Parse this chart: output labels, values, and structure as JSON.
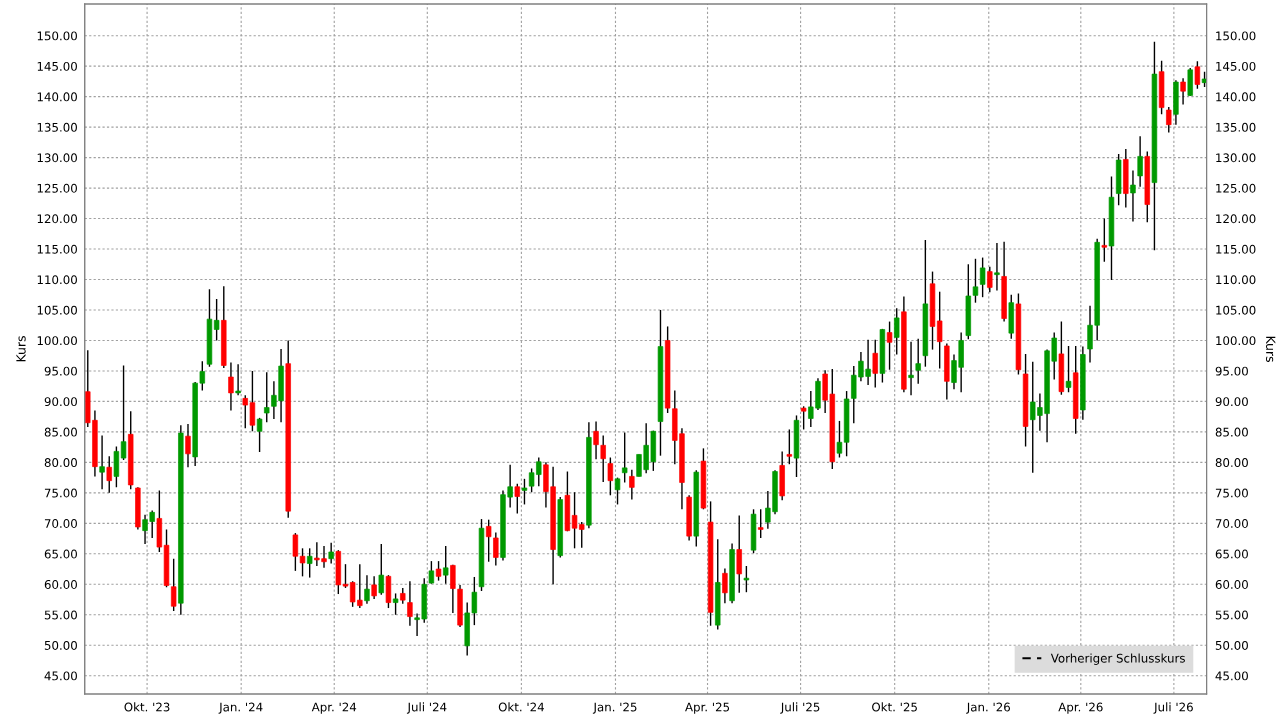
{
  "chart_data": {
    "type": "candlestick",
    "x": [
      "2023-08-04",
      "2023-08-11",
      "2023-08-18",
      "2023-08-25",
      "2023-09-01",
      "2023-09-08",
      "2023-09-15",
      "2023-09-22",
      "2023-09-29",
      "2023-10-06",
      "2023-10-13",
      "2023-10-20",
      "2023-10-27",
      "2023-11-03",
      "2023-11-10",
      "2023-11-17",
      "2023-11-24",
      "2023-12-01",
      "2023-12-08",
      "2023-12-15",
      "2023-12-22",
      "2023-12-29",
      "2024-01-05",
      "2024-01-12",
      "2024-01-19",
      "2024-01-26",
      "2024-02-02",
      "2024-02-09",
      "2024-02-16",
      "2024-02-23",
      "2024-03-01",
      "2024-03-08",
      "2024-03-15",
      "2024-03-22",
      "2024-03-29",
      "2024-04-05",
      "2024-04-12",
      "2024-04-19",
      "2024-04-26",
      "2024-05-03",
      "2024-05-10",
      "2024-05-17",
      "2024-05-24",
      "2024-05-31",
      "2024-06-07",
      "2024-06-14",
      "2024-06-21",
      "2024-06-28",
      "2024-07-05",
      "2024-07-12",
      "2024-07-19",
      "2024-07-26",
      "2024-08-02",
      "2024-08-09",
      "2024-08-16",
      "2024-08-23",
      "2024-08-30",
      "2024-09-06",
      "2024-09-13",
      "2024-09-20",
      "2024-09-27",
      "2024-10-04",
      "2024-10-11",
      "2024-10-18",
      "2024-10-25",
      "2024-11-01",
      "2024-11-08",
      "2024-11-15",
      "2024-11-22",
      "2024-11-29",
      "2024-12-06",
      "2024-12-13",
      "2024-12-20",
      "2024-12-27",
      "2025-01-03",
      "2025-01-10",
      "2025-01-17",
      "2025-01-24",
      "2025-01-31",
      "2025-02-07",
      "2025-02-14",
      "2025-02-21",
      "2025-02-28",
      "2025-03-07",
      "2025-03-14",
      "2025-03-21",
      "2025-03-28",
      "2025-04-04",
      "2025-04-11",
      "2025-04-18",
      "2025-04-25",
      "2025-05-02",
      "2025-05-09",
      "2025-05-16",
      "2025-05-23",
      "2025-05-30",
      "2025-06-06",
      "2025-06-13",
      "2025-06-20",
      "2025-06-27",
      "2025-07-04",
      "2025-07-11",
      "2025-07-18",
      "2025-07-25",
      "2025-08-01",
      "2025-08-08",
      "2025-08-15",
      "2025-08-22",
      "2025-08-29",
      "2025-09-05",
      "2025-09-12",
      "2025-09-19",
      "2025-09-26",
      "2025-10-03",
      "2025-10-10",
      "2025-10-17",
      "2025-10-24",
      "2025-10-31",
      "2025-11-07",
      "2025-11-14",
      "2025-11-21",
      "2025-11-28",
      "2025-12-05",
      "2025-12-12",
      "2025-12-19",
      "2025-12-26",
      "2026-01-02",
      "2026-01-09",
      "2026-01-16",
      "2026-01-23",
      "2026-01-30",
      "2026-02-06",
      "2026-02-13",
      "2026-02-20",
      "2026-02-27",
      "2026-03-06",
      "2026-03-13",
      "2026-03-20",
      "2026-03-27",
      "2026-04-03",
      "2026-04-10",
      "2026-04-17",
      "2026-04-24",
      "2026-05-01",
      "2026-05-08",
      "2026-05-15",
      "2026-05-22",
      "2026-05-29",
      "2026-06-05",
      "2026-06-12",
      "2026-06-19",
      "2026-06-26",
      "2026-07-03",
      "2026-07-10",
      "2026-07-17",
      "2026-07-24",
      "2026-07-31"
    ],
    "ohlc": [
      [
        91.6,
        98.4,
        85.8,
        86.5
      ],
      [
        86.9,
        88.5,
        77.7,
        79.3
      ],
      [
        78.4,
        84.4,
        75.6,
        79.3
      ],
      [
        79.2,
        81.0,
        75.0,
        77.0
      ],
      [
        77.7,
        82.6,
        75.9,
        81.8
      ],
      [
        80.7,
        95.9,
        80.4,
        83.4
      ],
      [
        84.6,
        88.4,
        75.6,
        76.3
      ],
      [
        75.8,
        75.9,
        69.0,
        69.4
      ],
      [
        68.8,
        71.4,
        66.6,
        70.6
      ],
      [
        70.3,
        72.1,
        67.6,
        71.8
      ],
      [
        70.8,
        75.4,
        65.3,
        66.1
      ],
      [
        66.4,
        69.0,
        59.5,
        59.8
      ],
      [
        59.6,
        64.2,
        55.6,
        56.4
      ],
      [
        56.9,
        86.1,
        55.0,
        84.8
      ],
      [
        84.3,
        86.3,
        79.2,
        81.4
      ],
      [
        80.9,
        93.2,
        79.4,
        93.0
      ],
      [
        93.0,
        96.6,
        91.8,
        94.9
      ],
      [
        96.1,
        108.4,
        95.7,
        103.5
      ],
      [
        101.8,
        106.8,
        100.0,
        103.3
      ],
      [
        103.3,
        108.9,
        95.5,
        95.9
      ],
      [
        94.0,
        96.4,
        88.5,
        91.4
      ],
      [
        91.4,
        96.1,
        91.0,
        91.7
      ],
      [
        90.5,
        91.0,
        85.6,
        89.4
      ],
      [
        89.8,
        95.0,
        85.1,
        86.1
      ],
      [
        85.1,
        87.3,
        81.7,
        87.1
      ],
      [
        88.1,
        94.8,
        86.6,
        89.0
      ],
      [
        89.2,
        93.3,
        87.1,
        91.0
      ],
      [
        90.1,
        98.6,
        86.6,
        95.8
      ],
      [
        96.2,
        100.0,
        70.9,
        72.0
      ],
      [
        68.1,
        68.4,
        62.2,
        64.6
      ],
      [
        64.6,
        65.9,
        61.3,
        63.5
      ],
      [
        63.4,
        65.9,
        61.1,
        64.6
      ],
      [
        64.3,
        66.9,
        63.0,
        64.0
      ],
      [
        64.2,
        66.3,
        62.7,
        63.7
      ],
      [
        64.2,
        66.8,
        63.4,
        65.3
      ],
      [
        65.4,
        65.6,
        58.4,
        59.9
      ],
      [
        60.0,
        63.3,
        59.4,
        59.7
      ],
      [
        60.3,
        60.5,
        56.3,
        57.1
      ],
      [
        57.4,
        63.3,
        56.1,
        56.5
      ],
      [
        57.3,
        61.5,
        56.8,
        59.2
      ],
      [
        59.9,
        61.3,
        57.6,
        58.1
      ],
      [
        58.6,
        66.6,
        58.3,
        61.5
      ],
      [
        61.3,
        61.5,
        56.1,
        57.0
      ],
      [
        57.0,
        58.5,
        55.0,
        57.6
      ],
      [
        58.5,
        59.4,
        56.8,
        57.4
      ],
      [
        57.0,
        60.5,
        53.2,
        54.7
      ],
      [
        54.2,
        55.2,
        51.5,
        54.5
      ],
      [
        54.3,
        61.0,
        53.7,
        60.0
      ],
      [
        60.2,
        63.8,
        60.1,
        62.2
      ],
      [
        62.5,
        63.8,
        60.6,
        61.3
      ],
      [
        61.5,
        66.3,
        60.1,
        62.7
      ],
      [
        63.1,
        63.2,
        55.3,
        59.3
      ],
      [
        59.2,
        59.9,
        53.0,
        53.3
      ],
      [
        49.9,
        57.0,
        48.3,
        55.3
      ],
      [
        55.3,
        61.2,
        53.3,
        58.7
      ],
      [
        59.6,
        70.7,
        58.9,
        69.2
      ],
      [
        69.5,
        70.6,
        63.7,
        67.8
      ],
      [
        67.6,
        68.5,
        63.1,
        64.4
      ],
      [
        64.4,
        75.4,
        63.9,
        74.7
      ],
      [
        74.3,
        79.6,
        72.6,
        76.0
      ],
      [
        76.0,
        76.5,
        71.6,
        74.4
      ],
      [
        75.4,
        77.3,
        73.1,
        75.8
      ],
      [
        76.1,
        79.0,
        75.1,
        78.3
      ],
      [
        78.0,
        80.8,
        76.1,
        80.1
      ],
      [
        79.6,
        80.0,
        72.6,
        75.2
      ],
      [
        76.0,
        79.3,
        60.0,
        65.7
      ],
      [
        64.7,
        74.3,
        64.4,
        73.9
      ],
      [
        74.6,
        78.5,
        68.7,
        68.8
      ],
      [
        71.3,
        75.1,
        65.9,
        69.2
      ],
      [
        69.8,
        70.2,
        66.0,
        69.0
      ],
      [
        69.7,
        86.6,
        69.2,
        84.1
      ],
      [
        85.1,
        86.7,
        80.5,
        82.9
      ],
      [
        82.8,
        84.4,
        76.8,
        80.6
      ],
      [
        79.8,
        80.8,
        74.6,
        77.0
      ],
      [
        75.5,
        77.5,
        73.1,
        77.3
      ],
      [
        78.3,
        84.9,
        76.7,
        79.1
      ],
      [
        77.7,
        78.8,
        73.9,
        75.9
      ],
      [
        77.7,
        81.3,
        77.7,
        81.3
      ],
      [
        78.8,
        86.4,
        78.2,
        82.8
      ],
      [
        80.1,
        85.2,
        78.6,
        85.1
      ],
      [
        86.7,
        105.0,
        81.1,
        99.0
      ],
      [
        100.0,
        102.3,
        88.1,
        88.9
      ],
      [
        88.8,
        91.8,
        79.7,
        83.6
      ],
      [
        84.7,
        85.6,
        72.3,
        76.7
      ],
      [
        74.3,
        74.6,
        67.2,
        67.9
      ],
      [
        67.9,
        78.7,
        66.2,
        78.4
      ],
      [
        80.2,
        82.3,
        72.3,
        72.5
      ],
      [
        70.2,
        73.6,
        53.2,
        55.4
      ],
      [
        53.3,
        67.4,
        52.6,
        60.3
      ],
      [
        61.8,
        62.6,
        56.9,
        58.6
      ],
      [
        57.3,
        66.7,
        56.9,
        65.7
      ],
      [
        65.7,
        71.3,
        58.6,
        61.7
      ],
      [
        60.7,
        63.0,
        58.7,
        61.0
      ],
      [
        65.6,
        72.3,
        65.1,
        71.5
      ],
      [
        69.3,
        72.3,
        67.6,
        69.0
      ],
      [
        70.2,
        75.3,
        69.1,
        72.5
      ],
      [
        71.9,
        78.7,
        71.5,
        78.5
      ],
      [
        79.5,
        81.8,
        73.8,
        74.5
      ],
      [
        81.3,
        85.4,
        79.7,
        81.0
      ],
      [
        80.7,
        87.7,
        77.6,
        86.9
      ],
      [
        88.9,
        89.2,
        85.4,
        88.4
      ],
      [
        87.2,
        91.7,
        85.8,
        89.1
      ],
      [
        88.9,
        93.8,
        88.6,
        93.3
      ],
      [
        94.5,
        95.1,
        88.1,
        90.2
      ],
      [
        91.2,
        95.3,
        78.9,
        80.1
      ],
      [
        81.5,
        86.8,
        80.8,
        83.3
      ],
      [
        83.3,
        91.7,
        81.0,
        90.4
      ],
      [
        90.5,
        95.8,
        86.4,
        94.3
      ],
      [
        94.0,
        98.1,
        93.3,
        96.6
      ],
      [
        94.1,
        100.1,
        92.7,
        95.3
      ],
      [
        97.9,
        100.1,
        92.3,
        94.6
      ],
      [
        94.6,
        101.9,
        93.1,
        101.8
      ],
      [
        101.3,
        103.1,
        95.2,
        99.7
      ],
      [
        100.5,
        105.3,
        97.7,
        103.7
      ],
      [
        104.7,
        107.2,
        91.5,
        92.0
      ],
      [
        93.9,
        99.8,
        91.0,
        94.3
      ],
      [
        95.1,
        100.3,
        92.9,
        96.2
      ],
      [
        97.5,
        116.5,
        95.7,
        106.0
      ],
      [
        109.3,
        111.3,
        98.5,
        102.3
      ],
      [
        103.2,
        108.0,
        95.4,
        99.8
      ],
      [
        99.1,
        99.5,
        90.3,
        93.3
      ],
      [
        93.1,
        97.7,
        92.0,
        96.7
      ],
      [
        95.6,
        101.3,
        91.5,
        100.0
      ],
      [
        100.8,
        112.5,
        100.2,
        107.3
      ],
      [
        107.4,
        113.4,
        106.2,
        108.8
      ],
      [
        109.2,
        113.6,
        107.1,
        111.9
      ],
      [
        111.3,
        112.1,
        107.9,
        108.7
      ],
      [
        110.8,
        116.0,
        108.2,
        111.1
      ],
      [
        110.5,
        116.2,
        103.1,
        103.6
      ],
      [
        101.2,
        107.5,
        100.3,
        106.2
      ],
      [
        106.0,
        107.7,
        94.4,
        95.2
      ],
      [
        94.5,
        97.8,
        82.6,
        85.9
      ],
      [
        87.0,
        96.5,
        78.3,
        89.9
      ],
      [
        87.7,
        91.3,
        85.2,
        89.0
      ],
      [
        88.0,
        98.5,
        83.3,
        98.3
      ],
      [
        96.6,
        101.3,
        93.6,
        100.4
      ],
      [
        97.8,
        103.1,
        91.1,
        91.6
      ],
      [
        92.3,
        99.1,
        91.5,
        93.3
      ],
      [
        94.7,
        99.1,
        84.7,
        87.2
      ],
      [
        88.6,
        99.0,
        87.0,
        97.7
      ],
      [
        98.6,
        105.7,
        96.4,
        102.5
      ],
      [
        102.5,
        116.7,
        100.0,
        116.1
      ],
      [
        115.6,
        120.0,
        112.9,
        115.3
      ],
      [
        115.5,
        126.9,
        109.9,
        123.5
      ],
      [
        124.1,
        130.6,
        122.2,
        129.6
      ],
      [
        129.7,
        131.4,
        121.8,
        124.1
      ],
      [
        124.2,
        127.9,
        119.5,
        125.5
      ],
      [
        127.0,
        133.5,
        125.2,
        130.2
      ],
      [
        130.2,
        131.0,
        119.4,
        122.3
      ],
      [
        125.9,
        149.0,
        114.8,
        143.7
      ],
      [
        144.1,
        145.9,
        137.1,
        138.2
      ],
      [
        137.8,
        138.3,
        134.1,
        135.4
      ],
      [
        137.1,
        142.7,
        135.4,
        142.4
      ],
      [
        142.4,
        143.0,
        138.7,
        140.9
      ],
      [
        140.2,
        144.7,
        140.1,
        144.4
      ],
      [
        144.9,
        145.8,
        141.3,
        142.0
      ],
      [
        142.3,
        144.1,
        141.6,
        142.9
      ]
    ],
    "colors": [
      "#ff0000",
      "#ff0000",
      "#009900",
      "#ff0000",
      "#009900",
      "#009900",
      "#ff0000",
      "#ff0000",
      "#009900",
      "#009900",
      "#ff0000",
      "#ff0000",
      "#ff0000",
      "#009900",
      "#ff0000",
      "#009900",
      "#009900",
      "#009900",
      "#009900",
      "#ff0000",
      "#ff0000",
      "#009900",
      "#ff0000",
      "#ff0000",
      "#009900",
      "#009900",
      "#009900",
      "#009900",
      "#ff0000",
      "#ff0000",
      "#ff0000",
      "#009900",
      "#ff0000",
      "#ff0000",
      "#009900",
      "#ff0000",
      "#ff0000",
      "#ff0000",
      "#ff0000",
      "#009900",
      "#ff0000",
      "#009900",
      "#ff0000",
      "#009900",
      "#ff0000",
      "#ff0000",
      "#009900",
      "#009900",
      "#009900",
      "#ff0000",
      "#009900",
      "#ff0000",
      "#ff0000",
      "#009900",
      "#009900",
      "#009900",
      "#ff0000",
      "#ff0000",
      "#009900",
      "#009900",
      "#ff0000",
      "#009900",
      "#009900",
      "#009900",
      "#ff0000",
      "#ff0000",
      "#009900",
      "#ff0000",
      "#ff0000",
      "#ff0000",
      "#009900",
      "#ff0000",
      "#ff0000",
      "#ff0000",
      "#009900",
      "#009900",
      "#ff0000",
      "#009900",
      "#009900",
      "#009900",
      "#009900",
      "#ff0000",
      "#ff0000",
      "#ff0000",
      "#ff0000",
      "#009900",
      "#ff0000",
      "#ff0000",
      "#009900",
      "#ff0000",
      "#009900",
      "#ff0000",
      "#009900",
      "#009900",
      "#ff0000",
      "#009900",
      "#009900",
      "#ff0000",
      "#ff0000",
      "#009900",
      "#ff0000",
      "#009900",
      "#009900",
      "#ff0000",
      "#ff0000",
      "#009900",
      "#009900",
      "#009900",
      "#009900",
      "#009900",
      "#ff0000",
      "#009900",
      "#ff0000",
      "#009900",
      "#ff0000",
      "#009900",
      "#009900",
      "#009900",
      "#ff0000",
      "#ff0000",
      "#ff0000",
      "#009900",
      "#009900",
      "#009900",
      "#009900",
      "#009900",
      "#ff0000",
      "#009900",
      "#ff0000",
      "#009900",
      "#ff0000",
      "#ff0000",
      "#009900",
      "#009900",
      "#009900",
      "#009900",
      "#ff0000",
      "#009900",
      "#ff0000",
      "#009900",
      "#009900",
      "#009900",
      "#ff0000",
      "#009900",
      "#009900",
      "#ff0000",
      "#009900",
      "#009900",
      "#ff0000",
      "#009900",
      "#ff0000",
      "#ff0000",
      "#009900",
      "#ff0000",
      "#009900",
      "#ff0000",
      "#009900"
    ],
    "series": [
      {
        "name": "Vorheriger Schlusskurs",
        "type": "line",
        "color": "#000000",
        "line_style": "dashed",
        "values": [
          null,
          null,
          null,
          null,
          null,
          null,
          null,
          null,
          null,
          null,
          null,
          null,
          null,
          null,
          null,
          null,
          null,
          null,
          null,
          null,
          null,
          null,
          null,
          null,
          null,
          null,
          null,
          null,
          null,
          null,
          null,
          null,
          null,
          null,
          null,
          null,
          null,
          null,
          null,
          null,
          null,
          null,
          null,
          null,
          null,
          null,
          null,
          null,
          null,
          null,
          null,
          null,
          null,
          null,
          null,
          null,
          null,
          null,
          null,
          null,
          null,
          null,
          null,
          null,
          null,
          null,
          null,
          null,
          null,
          null,
          null,
          null,
          null,
          null,
          null,
          null,
          null,
          null,
          null,
          null,
          null,
          null,
          null,
          null,
          null,
          null,
          null,
          null,
          null,
          null,
          null,
          null,
          null,
          null,
          null,
          null,
          null,
          null,
          null,
          null,
          null,
          null,
          null,
          null,
          null,
          null,
          null,
          null,
          null,
          null,
          null,
          null,
          null,
          null,
          null,
          null,
          null,
          null,
          null,
          null,
          null,
          null,
          null,
          null,
          null,
          null,
          null,
          null,
          null,
          null,
          null,
          null,
          null,
          null,
          null,
          null,
          null,
          null,
          null,
          null,
          null,
          null,
          null,
          null,
          null,
          null,
          null,
          null,
          null,
          null,
          null,
          null,
          null,
          null,
          null,
          null,
          null
        ]
      }
    ],
    "ylabel": "Kurs",
    "y2label": "Kurs",
    "xlim": [
      "2023-08-01",
      "2026-08-02"
    ],
    "xticks": [
      {
        "value": "2023-10-01",
        "label": "Okt. '23"
      },
      {
        "value": "2024-01-01",
        "label": "Jan. '24"
      },
      {
        "value": "2024-04-01",
        "label": "Apr. '24"
      },
      {
        "value": "2024-07-01",
        "label": "Juli '24"
      },
      {
        "value": "2024-10-01",
        "label": "Okt. '24"
      },
      {
        "value": "2025-01-01",
        "label": "Jan. '25"
      },
      {
        "value": "2025-04-01",
        "label": "Apr. '25"
      },
      {
        "value": "2025-07-01",
        "label": "Juli '25"
      },
      {
        "value": "2025-10-01",
        "label": "Okt. '25"
      },
      {
        "value": "2026-01-01",
        "label": "Jan. '26"
      },
      {
        "value": "2026-04-01",
        "label": "Apr. '26"
      },
      {
        "value": "2026-07-01",
        "label": "Juli '26"
      }
    ],
    "ylim": [
      42,
      155.2
    ],
    "yticks": [
      {
        "value": 45,
        "label": "45.00"
      },
      {
        "value": 50,
        "label": "50.00"
      },
      {
        "value": 55,
        "label": "55.00"
      },
      {
        "value": 60,
        "label": "60.00"
      },
      {
        "value": 65,
        "label": "65.00"
      },
      {
        "value": 70,
        "label": "70.00"
      },
      {
        "value": 75,
        "label": "75.00"
      },
      {
        "value": 80,
        "label": "80.00"
      },
      {
        "value": 85,
        "label": "85.00"
      },
      {
        "value": 90,
        "label": "90.00"
      },
      {
        "value": 95,
        "label": "95.00"
      },
      {
        "value": 100,
        "label": "100.00"
      },
      {
        "value": 105,
        "label": "105.00"
      },
      {
        "value": 110,
        "label": "110.00"
      },
      {
        "value": 115,
        "label": "115.00"
      },
      {
        "value": 120,
        "label": "120.00"
      },
      {
        "value": 125,
        "label": "125.00"
      },
      {
        "value": 130,
        "label": "130.00"
      },
      {
        "value": 135,
        "label": "135.00"
      },
      {
        "value": 140,
        "label": "140.00"
      },
      {
        "value": 145,
        "label": "145.00"
      },
      {
        "value": 150,
        "label": "150.00"
      }
    ],
    "y2lim": [
      42,
      155.2
    ],
    "y2ticks": [
      {
        "value": 45,
        "label": "45.00"
      },
      {
        "value": 50,
        "label": "50.00"
      },
      {
        "value": 55,
        "label": "55.00"
      },
      {
        "value": 60,
        "label": "60.00"
      },
      {
        "value": 65,
        "label": "65.00"
      },
      {
        "value": 70,
        "label": "70.00"
      },
      {
        "value": 75,
        "label": "75.00"
      },
      {
        "value": 80,
        "label": "80.00"
      },
      {
        "value": 85,
        "label": "85.00"
      },
      {
        "value": 90,
        "label": "90.00"
      },
      {
        "value": 95,
        "label": "95.00"
      },
      {
        "value": 100,
        "label": "100.00"
      },
      {
        "value": 105,
        "label": "105.00"
      },
      {
        "value": 110,
        "label": "110.00"
      },
      {
        "value": 115,
        "label": "115.00"
      },
      {
        "value": 120,
        "label": "120.00"
      },
      {
        "value": 125,
        "label": "125.00"
      },
      {
        "value": 130,
        "label": "130.00"
      },
      {
        "value": 135,
        "label": "135.00"
      },
      {
        "value": 140,
        "label": "140.00"
      },
      {
        "value": 145,
        "label": "145.00"
      },
      {
        "value": 150,
        "label": "150.00"
      }
    ],
    "grid": true,
    "legend": "bottom right"
  }
}
